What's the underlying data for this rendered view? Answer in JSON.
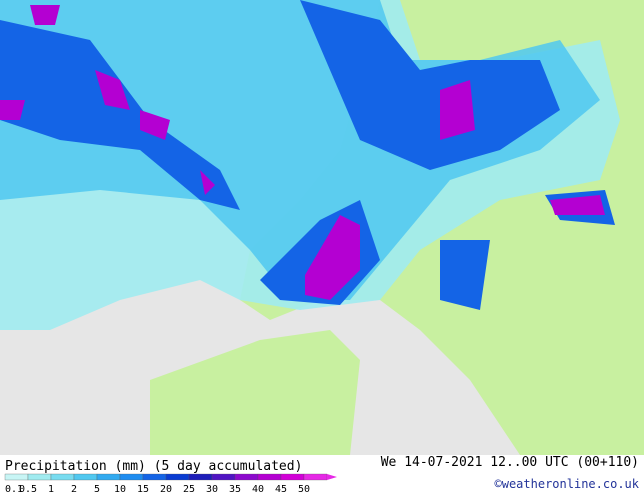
{
  "header": {
    "title": "Precipitation (mm) (5 day accumulated)",
    "valid_time": "We 14-07-2021 12..00 UTC (00+110)"
  },
  "legend": {
    "levels": [
      {
        "label": "0.1",
        "color": "#c8f5f5"
      },
      {
        "label": "0.5",
        "color": "#a0ebf0"
      },
      {
        "label": "1",
        "color": "#78dcf0"
      },
      {
        "label": "2",
        "color": "#50c8f0"
      },
      {
        "label": "5",
        "color": "#32aaf0"
      },
      {
        "label": "10",
        "color": "#1e8cf0"
      },
      {
        "label": "15",
        "color": "#1464e6"
      },
      {
        "label": "20",
        "color": "#0a3cd2"
      },
      {
        "label": "25",
        "color": "#1e1eb9"
      },
      {
        "label": "30",
        "color": "#5014c3"
      },
      {
        "label": "35",
        "color": "#8c0acd"
      },
      {
        "label": "40",
        "color": "#b400d2"
      },
      {
        "label": "45",
        "color": "#d200d7"
      },
      {
        "label": "50",
        "color": "#e628e6"
      }
    ]
  },
  "footer": {
    "credit": "©weatheronline.co.uk"
  }
}
